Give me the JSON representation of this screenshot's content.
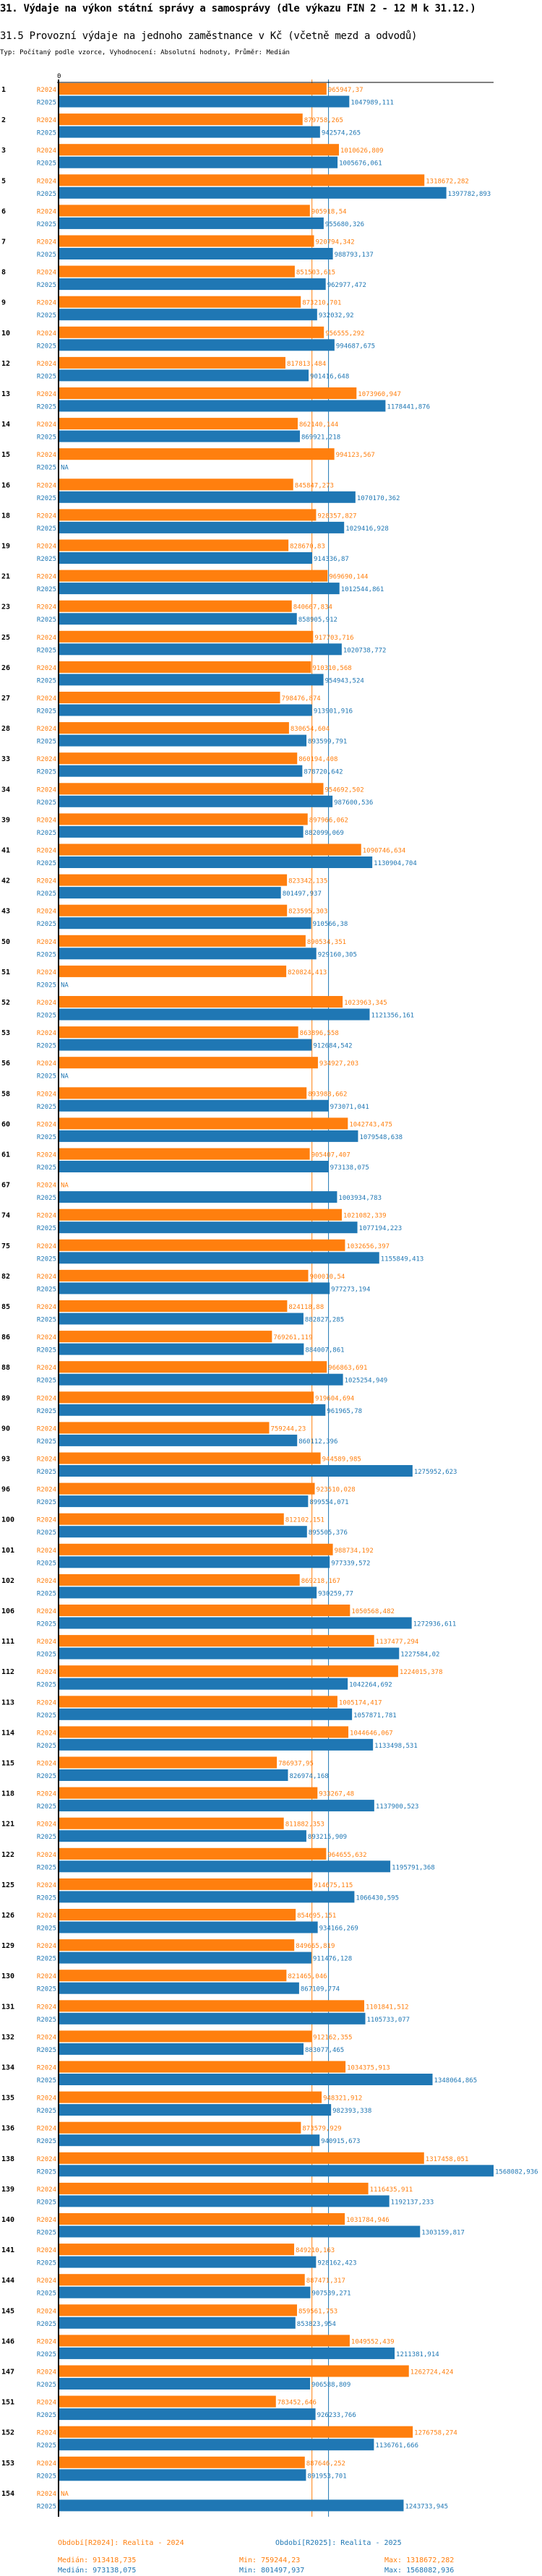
{
  "header": {
    "title": "31. Výdaje na výkon státní správy a samosprávy (dle výkazu FIN 2 - 12 M k 31.12.)",
    "subtitle": "31.5 Provozní výdaje na jednoho zaměstnance v Kč (včetně mezd a odvodů)",
    "meta": "Typ: Počítaný podle vzorce, Vyhodnocení: Absolutní hodnoty, Průměr: Medián"
  },
  "colors": {
    "R2024": "#ff7f0e",
    "R2025": "#1f77b4",
    "axis": "#000000"
  },
  "chart_data": {
    "type": "bar",
    "orientation": "horizontal",
    "title": "31.5 Provozní výdaje na jednoho zaměstnance v Kč (včetně mezd a odvodů)",
    "xlabel": "",
    "ylabel": "",
    "x_tick_labels": [
      "0"
    ],
    "xlim": [
      0,
      1568082.936
    ],
    "na_label": "NA",
    "series_names": [
      "R2024",
      "R2025"
    ],
    "categories": [
      "1",
      "2",
      "3",
      "5",
      "6",
      "7",
      "8",
      "9",
      "10",
      "12",
      "13",
      "14",
      "15",
      "16",
      "18",
      "19",
      "21",
      "23",
      "25",
      "26",
      "27",
      "28",
      "33",
      "34",
      "39",
      "41",
      "42",
      "43",
      "50",
      "51",
      "52",
      "53",
      "56",
      "58",
      "60",
      "61",
      "67",
      "74",
      "75",
      "82",
      "85",
      "86",
      "88",
      "89",
      "90",
      "93",
      "96",
      "100",
      "101",
      "102",
      "106",
      "111",
      "112",
      "113",
      "114",
      "115",
      "118",
      "121",
      "122",
      "125",
      "126",
      "129",
      "130",
      "131",
      "132",
      "134",
      "135",
      "136",
      "138",
      "139",
      "140",
      "141",
      "144",
      "145",
      "146",
      "147",
      "151",
      "152",
      "153",
      "154"
    ],
    "series": [
      {
        "name": "R2024",
        "values": [
          965947.37,
          879758.265,
          1010626.809,
          1318672.282,
          905918.54,
          920794.342,
          851503.615,
          873210.701,
          956555.292,
          817813.484,
          1073960.947,
          862140.144,
          994123.567,
          845847.273,
          928357.827,
          828670.83,
          969690.144,
          840667.834,
          917703.716,
          910310.568,
          798476.874,
          830654.604,
          860194.408,
          954692.502,
          897966.062,
          1090746.634,
          823342.135,
          823595.303,
          890534.351,
          820824.413,
          1023963.345,
          863896.558,
          934927.203,
          893988.662,
          1042743.475,
          905407.407,
          null,
          1021082.339,
          1032656.397,
          900010.54,
          824118.88,
          769261.119,
          966863.691,
          919604.694,
          759244.23,
          944589.985,
          923510.028,
          812102.151,
          988734.192,
          869218.167,
          1050568.482,
          1137477.294,
          1224015.378,
          1005174.417,
          1044646.067,
          786937.95,
          933267.48,
          811882.353,
          964655.632,
          914675.115,
          854695.151,
          849665.819,
          821465.046,
          1101841.512,
          912162.355,
          1034375.913,
          948321.912,
          873579.929,
          1317458.051,
          1116435.911,
          1031784.946,
          849210.163,
          887471.317,
          859561.753,
          1049552.439,
          1262724.424,
          783452.646,
          1276758.274,
          887646.252,
          null
        ],
        "labels": [
          "965947,37",
          "879758,265",
          "1010626,809",
          "1318672,282",
          "905918,54",
          "920794,342",
          "851503,615",
          "873210,701",
          "956555,292",
          "817813,484",
          "1073960,947",
          "862140,144",
          "994123,567",
          "845847,273",
          "928357,827",
          "828670,83",
          "969690,144",
          "840667,834",
          "917703,716",
          "910310,568",
          "798476,874",
          "830654,604",
          "860194,408",
          "954692,502",
          "897966,062",
          "1090746,634",
          "823342,135",
          "823595,303",
          "890534,351",
          "820824,413",
          "1023963,345",
          "863896,558",
          "934927,203",
          "893988,662",
          "1042743,475",
          "905407,407",
          "NA",
          "1021082,339",
          "1032656,397",
          "900010,54",
          "824118,88",
          "769261,119",
          "966863,691",
          "919604,694",
          "759244,23",
          "944589,985",
          "923510,028",
          "812102,151",
          "988734,192",
          "869218,167",
          "1050568,482",
          "1137477,294",
          "1224015,378",
          "1005174,417",
          "1044646,067",
          "786937,95",
          "933267,48",
          "811882,353",
          "964655,632",
          "914675,115",
          "854695,151",
          "849665,819",
          "821465,046",
          "1101841,512",
          "912162,355",
          "1034375,913",
          "948321,912",
          "873579,929",
          "1317458,051",
          "1116435,911",
          "1031784,946",
          "849210,163",
          "887471,317",
          "859561,753",
          "1049552,439",
          "1262724,424",
          "783452,646",
          "1276758,274",
          "887646,252",
          "NA"
        ]
      },
      {
        "name": "R2025",
        "values": [
          1047989.111,
          942574.265,
          1005676.061,
          1397782.893,
          955680.326,
          988793.137,
          962977.472,
          932032.92,
          994687.675,
          901416.648,
          1178441.876,
          869921.218,
          null,
          1070170.362,
          1029416.928,
          914336.87,
          1012544.861,
          858905.912,
          1020738.772,
          954943.524,
          913901.916,
          893599.791,
          878720.642,
          987600.536,
          882099.069,
          1130904.704,
          801497.937,
          910566.38,
          929160.305,
          null,
          1121356.161,
          912684.542,
          null,
          973071.041,
          1079548.638,
          973138.075,
          1003934.783,
          1077194.223,
          1155849.413,
          977273.194,
          882827.285,
          884007.861,
          1025254.949,
          961965.78,
          860112.396,
          1275952.623,
          899554.071,
          895505.376,
          977339.572,
          930259.77,
          1272936.611,
          1227584.02,
          1042264.692,
          1057871.781,
          1133498.531,
          826974.168,
          1137900.523,
          893215.909,
          1195791.368,
          1066430.595,
          934166.269,
          911476.128,
          867109.774,
          1105733.077,
          883077.465,
          1348064.865,
          982393.338,
          940915.673,
          1568082.936,
          1192137.233,
          1303159.817,
          928162.423,
          907539.271,
          853823.954,
          1211381.914,
          906588.809,
          926233.766,
          1136761.666,
          891953.701,
          1243733.945
        ],
        "labels": [
          "1047989,111",
          "942574,265",
          "1005676,061",
          "1397782,893",
          "955680,326",
          "988793,137",
          "962977,472",
          "932032,92",
          "994687,675",
          "901416,648",
          "1178441,876",
          "869921,218",
          "NA",
          "1070170,362",
          "1029416,928",
          "914336,87",
          "1012544,861",
          "858905,912",
          "1020738,772",
          "954943,524",
          "913901,916",
          "893599,791",
          "878720,642",
          "987600,536",
          "882099,069",
          "1130904,704",
          "801497,937",
          "910566,38",
          "929160,305",
          "NA",
          "1121356,161",
          "912684,542",
          "NA",
          "973071,041",
          "1079548,638",
          "973138,075",
          "1003934,783",
          "1077194,223",
          "1155849,413",
          "977273,194",
          "882827,285",
          "884007,861",
          "1025254,949",
          "961965,78",
          "860112,396",
          "1275952,623",
          "899554,071",
          "895505,376",
          "977339,572",
          "930259,77",
          "1272936,611",
          "1227584,02",
          "1042264,692",
          "1057871,781",
          "1133498,531",
          "826974,168",
          "1137900,523",
          "893215,909",
          "1195791,368",
          "1066430,595",
          "934166,269",
          "911476,128",
          "867109,774",
          "1105733,077",
          "883077,465",
          "1348064,865",
          "982393,338",
          "940915,673",
          "1568082,936",
          "1192137,233",
          "1303159,817",
          "928162,423",
          "907539,271",
          "853823,954",
          "1211381,914",
          "906588,809",
          "926233,766",
          "1136761,666",
          "891953,701",
          "1243733,945"
        ]
      }
    ],
    "reference_lines": [
      {
        "series": "R2024",
        "type": "median",
        "value": 913418.735
      },
      {
        "series": "R2025",
        "type": "median",
        "value": 973138.075
      }
    ],
    "legend": {
      "placement": "bottom",
      "R2024": {
        "period": "Období[R2024]: Realita - 2024",
        "median": "Medián: 913418,735",
        "min": "Min: 759244,23",
        "max": "Max: 1318672,282"
      },
      "R2025": {
        "period": "Období[R2025]: Realita - 2025",
        "median": "Medián: 973138,075",
        "min": "Min: 801497,937",
        "max": "Max: 1568082,936"
      }
    }
  }
}
